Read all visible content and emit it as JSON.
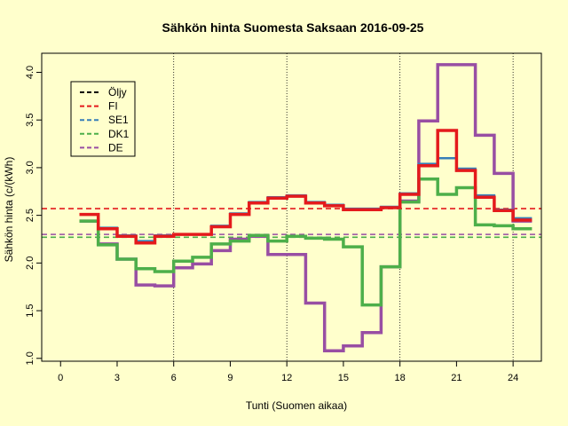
{
  "chart_data": {
    "type": "line",
    "title": "Sähkön hinta Suomesta Saksaan 2016-09-25",
    "xlabel": "Tunti (Suomen aikaa)",
    "ylabel": "Sähkön hinta (c/(kWh)",
    "xlim": [
      -1,
      25.5
    ],
    "ylim": [
      0.97,
      4.2
    ],
    "x_ticks": [
      0,
      3,
      6,
      9,
      12,
      15,
      18,
      21,
      24
    ],
    "y_ticks": [
      1.0,
      1.5,
      2.0,
      2.5,
      3.0,
      3.5,
      4.0
    ],
    "y_tick_labels": [
      "1.0",
      "1.5",
      "2.0",
      "2.5",
      "3.0",
      "3.5",
      "4.0"
    ],
    "vlines": [
      6,
      12,
      18,
      24
    ],
    "legend_position": "top-left",
    "series": [
      {
        "name": "Öljy",
        "color": "#000000",
        "style": "dashed",
        "values": []
      },
      {
        "name": "FI",
        "color": "#E41A1C",
        "style": "step",
        "mean": 2.57,
        "values": [
          2.51,
          2.36,
          2.28,
          2.21,
          2.28,
          2.3,
          2.3,
          2.38,
          2.51,
          2.63,
          2.68,
          2.7,
          2.63,
          2.6,
          2.56,
          2.56,
          2.58,
          2.72,
          3.02,
          3.39,
          2.97,
          2.69,
          2.55,
          2.45
        ]
      },
      {
        "name": "SE1",
        "color": "#377EB8",
        "style": "step",
        "values": [
          2.51,
          2.37,
          2.29,
          2.23,
          2.29,
          2.3,
          2.3,
          2.39,
          2.52,
          2.64,
          2.69,
          2.71,
          2.64,
          2.61,
          2.57,
          2.57,
          2.59,
          2.73,
          3.04,
          3.1,
          2.99,
          2.71,
          2.56,
          2.47
        ]
      },
      {
        "name": "DK1",
        "color": "#4DAF4A",
        "style": "step",
        "mean": 2.27,
        "values": [
          2.44,
          2.19,
          2.04,
          1.94,
          1.91,
          2.02,
          2.06,
          2.2,
          2.23,
          2.29,
          2.23,
          2.28,
          2.26,
          2.25,
          2.17,
          1.56,
          1.96,
          2.64,
          2.88,
          2.72,
          2.79,
          2.4,
          2.39,
          2.36
        ]
      },
      {
        "name": "DE",
        "color": "#984EA3",
        "style": "step",
        "mean": 2.3,
        "values": [
          2.44,
          2.2,
          2.04,
          1.77,
          1.76,
          1.95,
          1.99,
          2.13,
          2.25,
          2.28,
          2.09,
          2.09,
          1.58,
          1.08,
          1.13,
          1.27,
          1.96,
          2.65,
          3.49,
          4.08,
          4.08,
          3.34,
          2.94,
          2.44
        ]
      }
    ]
  }
}
